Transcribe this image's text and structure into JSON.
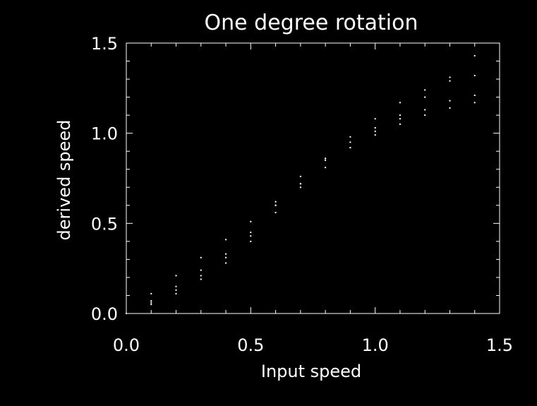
{
  "chart_data": {
    "type": "scatter",
    "title": "One degree rotation",
    "xlabel": "Input speed",
    "ylabel": "derived speed",
    "xlim": [
      0.0,
      1.5
    ],
    "ylim": [
      0.0,
      1.5
    ],
    "xticks": [
      0.0,
      0.5,
      1.0,
      1.5
    ],
    "xtick_labels": [
      "0.0",
      "0.5",
      "1.0",
      "1.5"
    ],
    "yticks": [
      0.0,
      0.5,
      1.0,
      1.5
    ],
    "ytick_labels": [
      "0.0",
      "0.5",
      "1.0",
      "1.5"
    ],
    "minor_ticks_per_major": 5,
    "grid": false,
    "legend": "none",
    "background_color": "#000000",
    "foreground_color": "#ffffff",
    "series": [
      {
        "x": [
          0.0,
          0.1,
          0.2,
          0.3,
          0.4,
          0.5,
          0.6,
          0.7,
          0.8,
          0.9,
          1.0,
          1.1,
          1.2,
          1.3,
          1.4
        ],
        "y": [
          0.0,
          0.07,
          0.15,
          0.24,
          0.33,
          0.45,
          0.62,
          0.72,
          0.85,
          0.95,
          1.03,
          1.08,
          1.13,
          1.18,
          1.21
        ]
      },
      {
        "x": [
          0.0,
          0.1,
          0.2,
          0.3,
          0.4,
          0.5,
          0.6,
          0.7,
          0.8,
          0.9,
          1.0,
          1.1,
          1.2,
          1.3,
          1.4
        ],
        "y": [
          0.0,
          0.11,
          0.21,
          0.31,
          0.41,
          0.51,
          0.6,
          0.7,
          0.81,
          0.92,
          1.01,
          1.1,
          1.2,
          1.31,
          1.43
        ]
      },
      {
        "x": [
          0.0,
          0.1,
          0.2,
          0.3,
          0.4,
          0.5,
          0.6,
          0.7,
          0.8,
          0.9,
          1.0,
          1.1,
          1.2,
          1.3,
          1.4
        ],
        "y": [
          0.0,
          0.05,
          0.11,
          0.19,
          0.28,
          0.4,
          0.56,
          0.72,
          0.86,
          0.98,
          1.08,
          1.17,
          1.24,
          1.29,
          1.32
        ]
      },
      {
        "x": [
          0.0,
          0.1,
          0.2,
          0.3,
          0.4,
          0.5,
          0.6,
          0.7,
          0.8,
          0.9,
          1.0,
          1.1,
          1.2,
          1.3,
          1.4
        ],
        "y": [
          0.0,
          0.06,
          0.13,
          0.21,
          0.31,
          0.43,
          0.6,
          0.76,
          0.86,
          0.92,
          0.99,
          1.05,
          1.1,
          1.14,
          1.17
        ]
      }
    ]
  }
}
